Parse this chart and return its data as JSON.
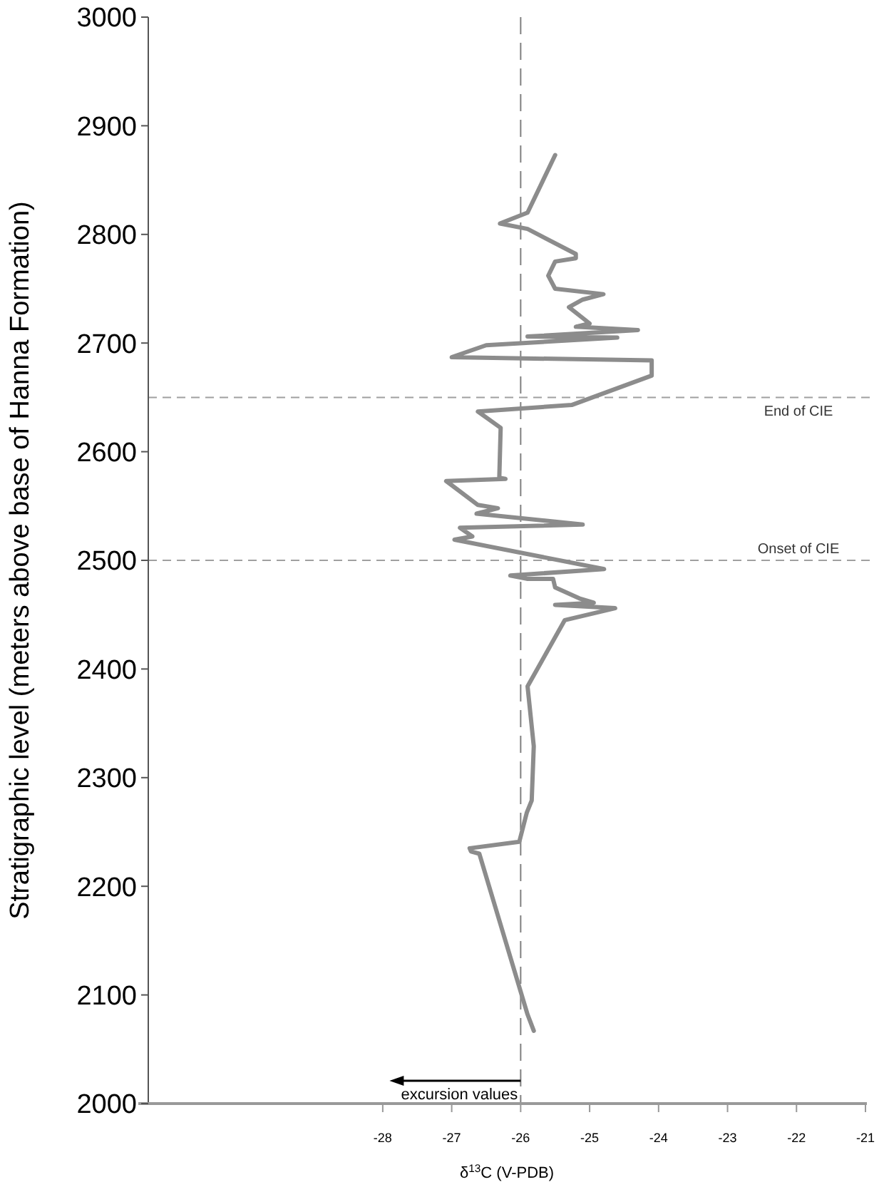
{
  "chart_data": {
    "type": "line",
    "xlabel": "δ$^{13}$C (V-PDB)",
    "ylabel": "Stratigraphic level (meters above base of Hanna Formation)",
    "xlim": [
      -31.4,
      -21
    ],
    "xticks": [
      -28,
      -27,
      -26,
      -25,
      -24,
      -23,
      -22,
      -21
    ],
    "ylim": [
      2000,
      3000
    ],
    "yticks": [
      2000,
      2100,
      2200,
      2300,
      2400,
      2500,
      2600,
      2700,
      2800,
      2900,
      3000
    ],
    "grid": false,
    "line_style": "solid",
    "series": [
      {
        "color": "#8c8c8c",
        "x": [
          -25.81,
          -25.9,
          -26.6,
          -26.72,
          -26.74,
          -26.02,
          -25.91,
          -25.84,
          -25.81,
          -25.9,
          -25.36,
          -24.63,
          -25.5,
          -24.94,
          -25.15,
          -25.5,
          -25.53,
          -25.91,
          -26.15,
          -24.79,
          -26.96,
          -26.7,
          -26.88,
          -25.1,
          -26.64,
          -26.33,
          -26.62,
          -27.08,
          -26.22,
          -26.31,
          -26.29,
          -26.62,
          -25.26,
          -24.1,
          -24.1,
          -27.0,
          -26.5,
          -24.6,
          -25.9,
          -24.3,
          -25.2,
          -25.0,
          -25.3,
          -25.1,
          -24.8,
          -25.5,
          -25.6,
          -25.5,
          -25.2,
          -25.2,
          -25.9,
          -26.3,
          -25.9,
          -25.5
        ],
        "values": [
          2067,
          2082,
          2230,
          2232,
          2235,
          2241,
          2268,
          2279,
          2329,
          2384,
          2445,
          2456,
          2459,
          2461,
          2465,
          2475,
          2483,
          2483,
          2486,
          2492,
          2519,
          2522,
          2530,
          2533,
          2543,
          2548,
          2551,
          2573,
          2575,
          2576,
          2622,
          2637,
          2643,
          2670,
          2684,
          2687,
          2698,
          2705,
          2706,
          2712,
          2715,
          2718,
          2733,
          2740,
          2745,
          2750,
          2762,
          2775,
          2778,
          2782,
          2805,
          2810,
          2820,
          2873
        ]
      }
    ],
    "ref_lines": [
      {
        "axis": "x",
        "value": -26,
        "label": null,
        "line_style": "dashed",
        "color": "#808080"
      },
      {
        "axis": "y",
        "value": 2650,
        "label": "End of CIE",
        "line_style": "dashed",
        "color": "#a0a0a0"
      },
      {
        "axis": "y",
        "value": 2500,
        "label": "Onset of CIE",
        "line_style": "dashed",
        "color": "#a0a0a0"
      }
    ],
    "annotations": [
      "excursion values"
    ]
  }
}
